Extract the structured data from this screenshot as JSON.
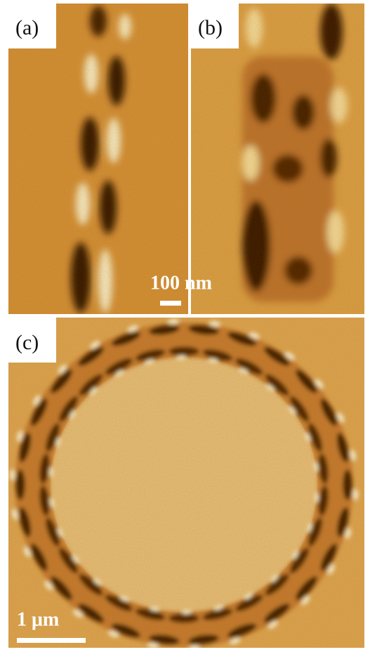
{
  "panels": [
    {
      "label": "(a)"
    },
    {
      "label": "(b)",
      "scale_bar": "100 nm"
    },
    {
      "label": "(c)",
      "scale_bar": "1 μm"
    }
  ]
}
